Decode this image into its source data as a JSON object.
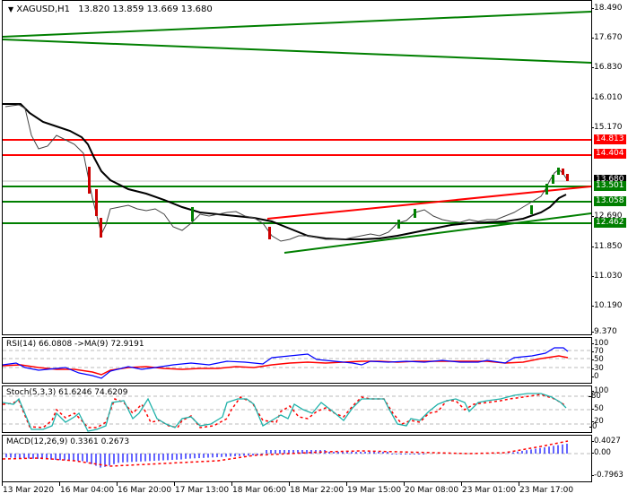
{
  "header": {
    "symbol": "XAGUSD,H1",
    "ohlc": "13.820 13.859 13.669 13.680",
    "menu_icon": "triangle-down-icon"
  },
  "colors": {
    "support": "#007f00",
    "resistance": "#ff0000",
    "bull_candle": "#008000",
    "bear_candle": "#cc0000",
    "ma": "#000000",
    "rsi_line": "#0000ff",
    "rsi_ma": "#ff0000",
    "stoch_main": "#20b2aa",
    "stoch_signal": "#ff0000",
    "macd_hist": "#0000ff",
    "macd_signal": "#ff0000"
  },
  "price_axis": {
    "ticks": [
      "18.490",
      "17.670",
      "16.830",
      "16.010",
      "15.170",
      "12.690",
      "11.850",
      "11.030",
      "10.190",
      "9.370"
    ],
    "labels": [
      {
        "value": "14.813",
        "color": "#ff0000"
      },
      {
        "value": "14.404",
        "color": "#ff0000"
      },
      {
        "value": "13.680",
        "color": "#000000"
      },
      {
        "value": "13.501",
        "color": "#007f00"
      },
      {
        "value": "13.058",
        "color": "#007f00"
      },
      {
        "value": "12.462",
        "color": "#007f00"
      }
    ]
  },
  "rsi": {
    "title": "RSI(14) 66.0808  ->MA(9) 72.9191",
    "ticks": [
      "100",
      "70",
      "50",
      "30",
      "0"
    ]
  },
  "stoch": {
    "title": "Stoch(5,3,3) 61.6246 74.6209",
    "ticks": [
      "100",
      "80",
      "50",
      "20",
      "0"
    ]
  },
  "macd": {
    "title": "MACD(12,26,9) 0.3361 0.2673",
    "ticks": [
      "0.4027",
      "0.00",
      "-0.7963"
    ]
  },
  "time_axis": {
    "ticks": [
      "13 Mar 2020",
      "16 Mar 04:00",
      "16 Mar 20:00",
      "17 Mar 13:00",
      "18 Mar 06:00",
      "18 Mar 22:00",
      "19 Mar 15:00",
      "20 Mar 08:00",
      "23 Mar 01:00",
      "23 Mar 17:00"
    ]
  },
  "chart_data": [
    {
      "type": "candlestick",
      "title": "XAGUSD,H1 13.820 13.859 13.669 13.680",
      "ylim": [
        9.37,
        18.49
      ],
      "x": [
        "13 Mar 2020",
        "16 Mar 04:00",
        "16 Mar 20:00",
        "17 Mar 13:00",
        "18 Mar 06:00",
        "18 Mar 22:00",
        "19 Mar 15:00",
        "20 Mar 08:00",
        "23 Mar 01:00",
        "23 Mar 17:00"
      ],
      "approx_close": [
        15.85,
        14.6,
        13.0,
        13.05,
        12.8,
        12.1,
        12.0,
        12.9,
        12.85,
        13.9
      ],
      "last_ohlc": {
        "open": 13.82,
        "high": 13.859,
        "low": 13.669,
        "close": 13.68
      },
      "horizontal_levels": {
        "resistance": [
          14.813,
          14.404
        ],
        "support": [
          13.501,
          13.058,
          12.462
        ]
      },
      "trendlines": [
        {
          "color": "green",
          "from": [
            0,
            16.95
          ],
          "to": [
            1,
            17.62
          ]
        },
        {
          "color": "green",
          "from": [
            0,
            16.85
          ],
          "to": [
            1,
            16.42
          ]
        },
        {
          "color": "red",
          "from": [
            0.45,
            12.85
          ],
          "to": [
            1,
            13.5
          ]
        },
        {
          "color": "green",
          "from": [
            0.48,
            12.05
          ],
          "to": [
            1,
            12.72
          ]
        }
      ],
      "moving_average": "black smoothed line trailing price"
    },
    {
      "type": "line",
      "title": "RSI(14) 66.0808 ->MA(9) 72.9191",
      "ylim": [
        0,
        100
      ],
      "levels": [
        70,
        50,
        30
      ],
      "series": [
        {
          "name": "RSI(14)",
          "last": 66.0808
        },
        {
          "name": "MA(9)",
          "last": 72.9191
        }
      ]
    },
    {
      "type": "line",
      "title": "Stoch(5,3,3) 61.6246 74.6209",
      "ylim": [
        0,
        100
      ],
      "levels": [
        80,
        50,
        20
      ],
      "series": [
        {
          "name": "%K",
          "last": 61.6246
        },
        {
          "name": "%D",
          "last": 74.6209
        }
      ]
    },
    {
      "type": "bar",
      "title": "MACD(12,26,9) 0.3361 0.2673",
      "ylim": [
        -0.7963,
        0.4027
      ],
      "series": [
        {
          "name": "MACD",
          "last": 0.3361
        },
        {
          "name": "Signal",
          "last": 0.2673
        }
      ]
    }
  ]
}
